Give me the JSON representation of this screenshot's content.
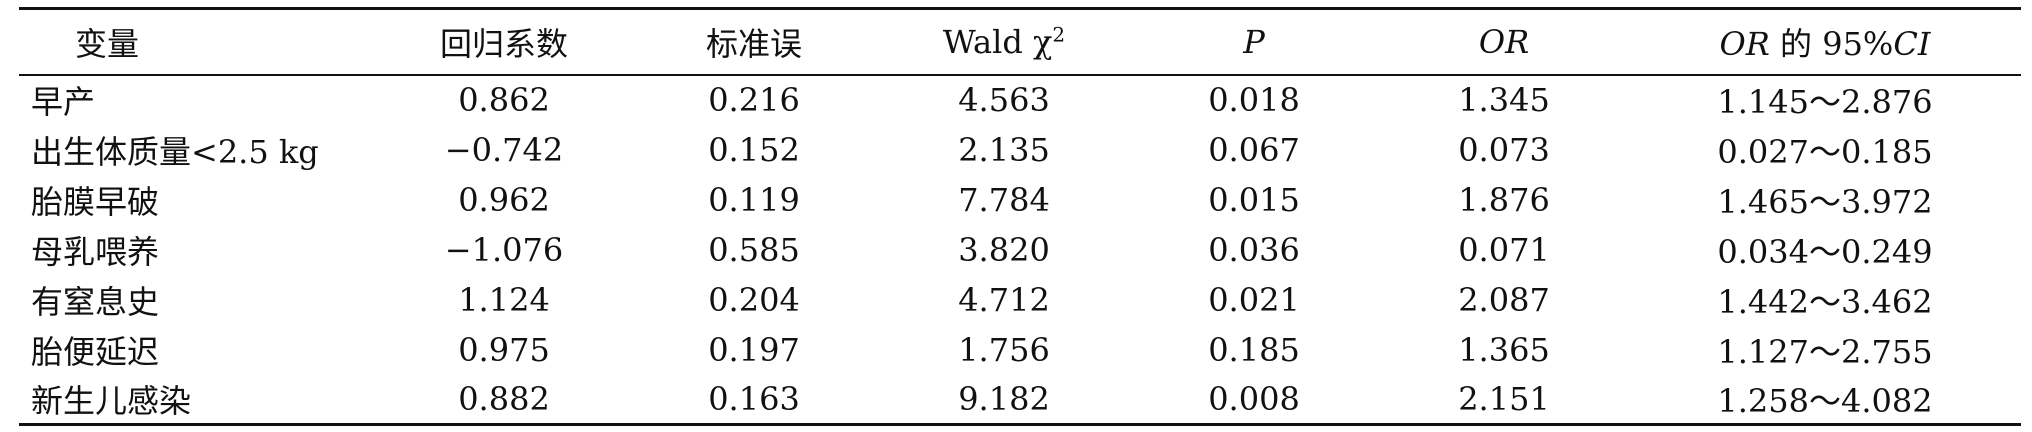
{
  "table": {
    "headers": {
      "variable": "变量",
      "coefficient": "回归系数",
      "std_error": "标准误",
      "wald_prefix": "Wald χ",
      "wald_superscript": "2",
      "p": "P",
      "or": "OR",
      "ci_or": "OR",
      "ci_text": " 的 95%",
      "ci_suffix": "CI"
    },
    "rows": [
      {
        "variable": "早产",
        "coefficient": "0.862",
        "std_error": "0.216",
        "wald": "4.563",
        "p": "0.018",
        "or": "1.345",
        "ci": "1.145～2.876"
      },
      {
        "variable": "出生体质量<2.5 kg",
        "coefficient": "−0.742",
        "std_error": "0.152",
        "wald": "2.135",
        "p": "0.067",
        "or": "0.073",
        "ci": "0.027～0.185"
      },
      {
        "variable": "胎膜早破",
        "coefficient": "0.962",
        "std_error": "0.119",
        "wald": "7.784",
        "p": "0.015",
        "or": "1.876",
        "ci": "1.465～3.972"
      },
      {
        "variable": "母乳喂养",
        "coefficient": "−1.076",
        "std_error": "0.585",
        "wald": "3.820",
        "p": "0.036",
        "or": "0.071",
        "ci": "0.034～0.249"
      },
      {
        "variable": "有窒息史",
        "coefficient": "1.124",
        "std_error": "0.204",
        "wald": "4.712",
        "p": "0.021",
        "or": "2.087",
        "ci": "1.442～3.462"
      },
      {
        "variable": "胎便延迟",
        "coefficient": "0.975",
        "std_error": "0.197",
        "wald": "1.756",
        "p": "0.185",
        "or": "1.365",
        "ci": "1.127～2.755"
      },
      {
        "variable": "新生儿感染",
        "coefficient": "0.882",
        "std_error": "0.163",
        "wald": "9.182",
        "p": "0.008",
        "or": "2.151",
        "ci": "1.258～4.082"
      }
    ]
  }
}
